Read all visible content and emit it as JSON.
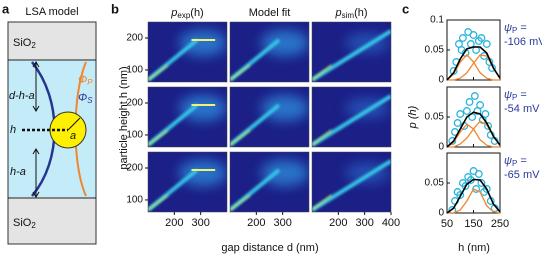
{
  "panel_letters": [
    "a",
    "b",
    "c"
  ],
  "panel_a": {
    "title": "LSA model",
    "top_layer": {
      "main": "SiO",
      "sub": "2"
    },
    "bottom_layer": {
      "main": "SiO",
      "sub": "2"
    },
    "gap_label": "d-h-a",
    "height_label": "h",
    "lower_label": "h-a",
    "radius_label": "a",
    "potential_p": {
      "main": "Φ",
      "sub": "P"
    },
    "potential_s": {
      "main": "Φ",
      "sub": "S"
    }
  },
  "panel_b": {
    "columns": [
      {
        "main": "p",
        "sub": "exp",
        "arg": "(h)"
      },
      {
        "main": "Model fit"
      },
      {
        "main": "p",
        "sub": "sim",
        "arg": "(h)"
      }
    ],
    "y_label": "particle height h (nm)",
    "x_label": "gap distance d (nm)",
    "ylim": [
      77,
      283
    ],
    "log_y": true,
    "yticks": [
      100,
      200
    ],
    "xlim": [
      100,
      400
    ],
    "xticks": [
      [
        200,
        300
      ],
      [
        200,
        300
      ],
      [
        200,
        300,
        400
      ]
    ]
  },
  "panel_c": {
    "y_label": "p (h)",
    "x_label": "h (nm)"
  },
  "chart_data": [
    {
      "type": "scatter",
      "label": {
        "main": "ψ",
        "sub": "P",
        "eq": "=",
        "value": "-106 mV"
      },
      "xlim": [
        50,
        250
      ],
      "ylim": [
        0,
        0.1
      ],
      "xticks": [
        50,
        150,
        250
      ],
      "yticks": [
        0,
        0.05,
        0.1
      ],
      "points": {
        "color": "#2bb5dc",
        "x": [
          75,
          85,
          95,
          105,
          110,
          120,
          130,
          140,
          150,
          160,
          170,
          180,
          190,
          200,
          210,
          220
        ],
        "y": [
          0.015,
          0.03,
          0.06,
          0.05,
          0.07,
          0.045,
          0.08,
          0.06,
          0.075,
          0.05,
          0.065,
          0.07,
          0.04,
          0.06,
          0.03,
          0.02
        ]
      },
      "curve_x": [
        50,
        75,
        100,
        125,
        150,
        175,
        200,
        225,
        250
      ],
      "curves": [
        {
          "color": "#000000",
          "values": [
            0.0,
            0.012,
            0.035,
            0.052,
            0.055,
            0.055,
            0.045,
            0.02,
            0.003
          ]
        },
        {
          "color": "#f0862e",
          "values": [
            0.0,
            0.01,
            0.03,
            0.042,
            0.03,
            0.012,
            0.003,
            0.0,
            0.0
          ]
        },
        {
          "color": "#f0862e",
          "values": [
            0.0,
            0.0,
            0.003,
            0.012,
            0.028,
            0.042,
            0.04,
            0.02,
            0.003
          ]
        }
      ]
    },
    {
      "type": "scatter",
      "label": {
        "main": "ψ",
        "sub": "P",
        "eq": "=",
        "value": "-54 mV"
      },
      "xlim": [
        50,
        250
      ],
      "ylim": [
        0,
        0.1
      ],
      "xticks": [
        50,
        150,
        250
      ],
      "yticks": [
        0,
        0.05
      ],
      "points": {
        "color": "#2bb5dc",
        "x": [
          70,
          80,
          90,
          100,
          115,
          125,
          135,
          145,
          155,
          165,
          175,
          185,
          195,
          205,
          215,
          230
        ],
        "y": [
          0.01,
          0.025,
          0.04,
          0.055,
          0.035,
          0.06,
          0.075,
          0.05,
          0.085,
          0.06,
          0.07,
          0.045,
          0.055,
          0.035,
          0.02,
          0.01
        ]
      },
      "curve_x": [
        50,
        75,
        100,
        125,
        150,
        175,
        200,
        225,
        250
      ],
      "curves": [
        {
          "color": "#000000",
          "values": [
            0.0,
            0.01,
            0.03,
            0.05,
            0.058,
            0.055,
            0.04,
            0.018,
            0.003
          ]
        },
        {
          "color": "#f0862e",
          "values": [
            0.0,
            0.008,
            0.025,
            0.038,
            0.03,
            0.012,
            0.003,
            0.0,
            0.0
          ]
        },
        {
          "color": "#f0862e",
          "values": [
            0.0,
            0.0,
            0.005,
            0.015,
            0.03,
            0.043,
            0.037,
            0.018,
            0.003
          ]
        }
      ]
    },
    {
      "type": "scatter",
      "label": {
        "main": "ψ",
        "sub": "P",
        "eq": "=",
        "value": "-65 mV"
      },
      "xlim": [
        50,
        250
      ],
      "ylim": [
        0,
        0.1
      ],
      "xticks": [
        50,
        150,
        250
      ],
      "yticks": [
        0,
        0.05
      ],
      "points": {
        "color": "#2bb5dc",
        "x": [
          70,
          80,
          90,
          100,
          110,
          120,
          130,
          140,
          150,
          160,
          170,
          180,
          190,
          200,
          215,
          230
        ],
        "y": [
          0.005,
          0.02,
          0.035,
          0.03,
          0.05,
          0.045,
          0.06,
          0.055,
          0.07,
          0.04,
          0.065,
          0.05,
          0.035,
          0.04,
          0.02,
          0.008
        ]
      },
      "curve_x": [
        50,
        75,
        100,
        125,
        150,
        175,
        200,
        225,
        250
      ],
      "curves": [
        {
          "color": "#000000",
          "values": [
            0.0,
            0.008,
            0.028,
            0.048,
            0.056,
            0.055,
            0.04,
            0.015,
            0.002
          ]
        },
        {
          "color": "#f0862e",
          "values": [
            0.0,
            0.0,
            0.005,
            0.02,
            0.04,
            0.035,
            0.012,
            0.002,
            0.0
          ]
        }
      ]
    }
  ]
}
